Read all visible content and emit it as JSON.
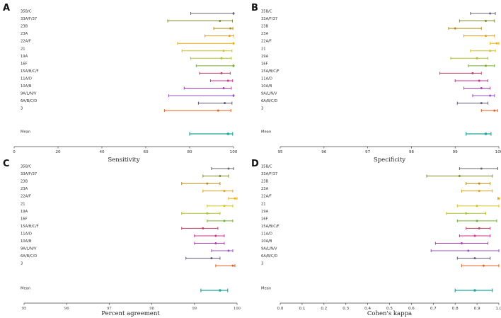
{
  "categories": [
    "35B/C",
    "33A/F/37",
    "23B",
    "23A",
    "22A/F",
    "21",
    "19A",
    "16F",
    "15A/B/C/F",
    "11A/D",
    "10A/B",
    "9A/L/N/V",
    "6A/B/C/D",
    "3"
  ],
  "mean_label": "Mean",
  "series_colors": [
    "#666670",
    "#7a8a2a",
    "#b58a1a",
    "#e0a020",
    "#f0b000",
    "#d8c020",
    "#b0c020",
    "#70b030",
    "#c04060",
    "#d03090",
    "#b03ab0",
    "#9a50c0",
    "#5a5a78",
    "#e06020"
  ],
  "mean_color": "#20a8a0",
  "chart_data": [
    {
      "type": "forest",
      "panel": "A",
      "xlabel": "Sensitivity",
      "xlim": [
        0,
        100
      ],
      "ticks": [
        "0",
        "20",
        "40",
        "60",
        "80",
        "100"
      ],
      "tick_values": [
        0,
        20,
        40,
        60,
        80,
        100
      ],
      "rows": [
        {
          "category": "35B/C",
          "estimate": 100,
          "lower": 80.5,
          "upper": 100
        },
        {
          "category": "33A/F/37",
          "estimate": 93.8,
          "lower": 70,
          "upper": 99.5
        },
        {
          "category": "23B",
          "estimate": 98.6,
          "lower": 91.0,
          "upper": 99.7
        },
        {
          "category": "23A",
          "estimate": 98.2,
          "lower": 87.0,
          "upper": 100
        },
        {
          "category": "22A/F",
          "estimate": 100,
          "lower": 74.5,
          "upper": 100
        },
        {
          "category": "21",
          "estimate": 95.5,
          "lower": 76.5,
          "upper": 99.3
        },
        {
          "category": "19A",
          "estimate": 94.5,
          "lower": 80.5,
          "upper": 99.0
        },
        {
          "category": "16F",
          "estimate": 100,
          "lower": 83.0,
          "upper": 100
        },
        {
          "category": "15A/B/C/F",
          "estimate": 94.5,
          "lower": 84.5,
          "upper": 98.5
        },
        {
          "category": "11A/D",
          "estimate": 97.5,
          "lower": 89.5,
          "upper": 99.6
        },
        {
          "category": "10A/B",
          "estimate": 95.5,
          "lower": 77.5,
          "upper": 99.0
        },
        {
          "category": "9A/L/N/V",
          "estimate": 100,
          "lower": 70.5,
          "upper": 100
        },
        {
          "category": "6A/B/C/D",
          "estimate": 96.0,
          "lower": 84.0,
          "upper": 99.3
        },
        {
          "category": "3",
          "estimate": 93.0,
          "lower": 68.5,
          "upper": 98.8
        }
      ],
      "mean": {
        "estimate": 97.5,
        "lower": 80.0,
        "upper": 99.6
      }
    },
    {
      "type": "forest",
      "panel": "B",
      "xlabel": "Specificity",
      "xlim": [
        95,
        100
      ],
      "ticks": [
        "95",
        "96",
        "97",
        "98",
        "99",
        "100"
      ],
      "tick_values": [
        95,
        96,
        97,
        98,
        99,
        100
      ],
      "rows": [
        {
          "category": "35B/C",
          "estimate": 99.8,
          "lower": 99.35,
          "upper": 99.92
        },
        {
          "category": "33A/F/37",
          "estimate": 99.7,
          "lower": 99.1,
          "upper": 99.9
        },
        {
          "category": "23B",
          "estimate": 99.0,
          "lower": 98.85,
          "upper": 99.6
        },
        {
          "category": "23A",
          "estimate": 99.7,
          "lower": 99.2,
          "upper": 99.9
        },
        {
          "category": "22A/F",
          "estimate": 99.95,
          "lower": 99.8,
          "upper": 100
        },
        {
          "category": "21",
          "estimate": 99.8,
          "lower": 99.35,
          "upper": 99.92
        },
        {
          "category": "19A",
          "estimate": 99.5,
          "lower": 98.9,
          "upper": 99.75
        },
        {
          "category": "16F",
          "estimate": 99.7,
          "lower": 99.3,
          "upper": 99.9
        },
        {
          "category": "15A/B/C/F",
          "estimate": 99.4,
          "lower": 98.65,
          "upper": 99.6
        },
        {
          "category": "11A/D",
          "estimate": 99.55,
          "lower": 99.0,
          "upper": 99.75
        },
        {
          "category": "10A/B",
          "estimate": 99.6,
          "lower": 99.2,
          "upper": 99.8
        },
        {
          "category": "9A/L/N/V",
          "estimate": 99.8,
          "lower": 99.4,
          "upper": 99.9
        },
        {
          "category": "6A/B/C/D",
          "estimate": 99.6,
          "lower": 99.05,
          "upper": 99.75
        },
        {
          "category": "3",
          "estimate": 99.9,
          "lower": 99.6,
          "upper": 99.97
        }
      ],
      "mean": {
        "estimate": 99.7,
        "lower": 99.25,
        "upper": 99.82
      }
    },
    {
      "type": "forest",
      "panel": "C",
      "xlabel": "Percent agreement",
      "xlim": [
        95,
        100
      ],
      "ticks": [
        "95",
        "96",
        "97",
        "98",
        "99",
        "100"
      ],
      "tick_values": [
        95,
        96,
        97,
        98,
        99,
        100
      ],
      "rows": [
        {
          "category": "35B/C",
          "estimate": 99.8,
          "lower": 99.4,
          "upper": 99.92
        },
        {
          "category": "33A/F/37",
          "estimate": 99.6,
          "lower": 99.2,
          "upper": 99.8
        },
        {
          "category": "23B",
          "estimate": 99.3,
          "lower": 98.7,
          "upper": 99.6
        },
        {
          "category": "23A",
          "estimate": 99.7,
          "lower": 99.2,
          "upper": 99.9
        },
        {
          "category": "22A/F",
          "estimate": 99.95,
          "lower": 99.8,
          "upper": 100
        },
        {
          "category": "21",
          "estimate": 99.7,
          "lower": 99.3,
          "upper": 99.9
        },
        {
          "category": "19A",
          "estimate": 99.3,
          "lower": 98.7,
          "upper": 99.6
        },
        {
          "category": "16F",
          "estimate": 99.7,
          "lower": 99.3,
          "upper": 99.9
        },
        {
          "category": "15A/B/C/F",
          "estimate": 99.2,
          "lower": 98.7,
          "upper": 99.55
        },
        {
          "category": "11A/D",
          "estimate": 99.5,
          "lower": 99.0,
          "upper": 99.7
        },
        {
          "category": "10A/B",
          "estimate": 99.5,
          "lower": 99.0,
          "upper": 99.7
        },
        {
          "category": "9A/L/N/V",
          "estimate": 99.8,
          "lower": 99.4,
          "upper": 99.9
        },
        {
          "category": "6A/B/C/D",
          "estimate": 99.4,
          "lower": 98.8,
          "upper": 99.6
        },
        {
          "category": "3",
          "estimate": 99.9,
          "lower": 99.5,
          "upper": 99.95
        }
      ],
      "mean": {
        "estimate": 99.6,
        "lower": 99.15,
        "upper": 99.78
      }
    },
    {
      "type": "forest",
      "panel": "D",
      "xlabel": "Cohen's kappa",
      "xlim": [
        0,
        1
      ],
      "ticks": [
        "0.0",
        "0.1",
        "0.2",
        "0.3",
        "0.4",
        "0.5",
        "0.6",
        "0.7",
        "0.8",
        "0.9",
        "1.0"
      ],
      "tick_values": [
        0.0,
        0.1,
        0.2,
        0.3,
        0.4,
        0.5,
        0.6,
        0.7,
        0.8,
        0.9,
        1.0
      ],
      "rows": [
        {
          "category": "35B/C",
          "estimate": 0.92,
          "lower": 0.82,
          "upper": 0.995
        },
        {
          "category": "33A/F/37",
          "estimate": 0.82,
          "lower": 0.67,
          "upper": 0.97
        },
        {
          "category": "23B",
          "estimate": 0.91,
          "lower": 0.85,
          "upper": 0.96
        },
        {
          "category": "23A",
          "estimate": 0.91,
          "lower": 0.83,
          "upper": 0.97
        },
        {
          "category": "22A/F",
          "estimate": 1.0,
          "lower": 0.995,
          "upper": 1.0
        },
        {
          "category": "21",
          "estimate": 0.9,
          "lower": 0.81,
          "upper": 1.0
        },
        {
          "category": "19A",
          "estimate": 0.85,
          "lower": 0.76,
          "upper": 0.94
        },
        {
          "category": "16F",
          "estimate": 0.9,
          "lower": 0.81,
          "upper": 0.99
        },
        {
          "category": "15A/B/C/F",
          "estimate": 0.91,
          "lower": 0.85,
          "upper": 0.96
        },
        {
          "category": "11A/D",
          "estimate": 0.89,
          "lower": 0.82,
          "upper": 0.96
        },
        {
          "category": "10A/B",
          "estimate": 0.83,
          "lower": 0.71,
          "upper": 0.95
        },
        {
          "category": "9A/L/N/V",
          "estimate": 0.86,
          "lower": 0.69,
          "upper": 1.0
        },
        {
          "category": "6A/B/C/D",
          "estimate": 0.89,
          "lower": 0.81,
          "upper": 0.96
        },
        {
          "category": "3",
          "estimate": 0.93,
          "lower": 0.83,
          "upper": 1.0
        }
      ],
      "mean": {
        "estimate": 0.89,
        "lower": 0.8,
        "upper": 0.97
      }
    }
  ]
}
